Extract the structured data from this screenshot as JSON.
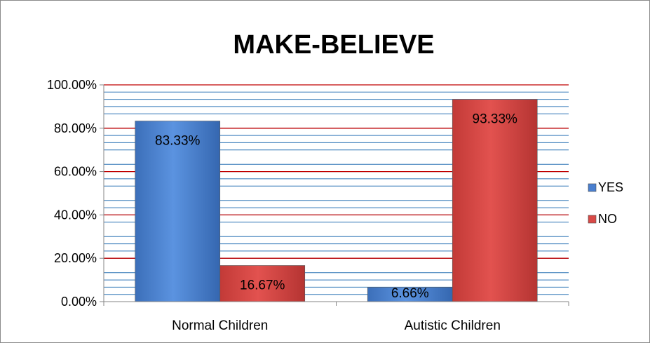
{
  "chart_data": {
    "type": "bar",
    "title": "MAKE-BELIEVE",
    "categories": [
      "Normal Children",
      "Autistic Children"
    ],
    "series": [
      {
        "name": "YES",
        "values": [
          83.33,
          6.66
        ],
        "labels": [
          "83.33%",
          "6.66%"
        ],
        "color": "#4a7fcf"
      },
      {
        "name": "NO",
        "values": [
          16.67,
          93.33
        ],
        "labels": [
          "16.67%",
          "93.33%"
        ],
        "color": "#d94a47"
      }
    ],
    "ylim": [
      0,
      100
    ],
    "yticks": [
      0,
      20,
      40,
      60,
      80,
      100
    ],
    "ytick_labels": [
      "0.00%",
      "20.00%",
      "40.00%",
      "60.00%",
      "80.00%",
      "100.00%"
    ],
    "grid": true,
    "major_grid_color": "#c00000",
    "minor_grid_color": "#2e75b6",
    "legend_position": "right",
    "xlabel": "",
    "ylabel": ""
  }
}
